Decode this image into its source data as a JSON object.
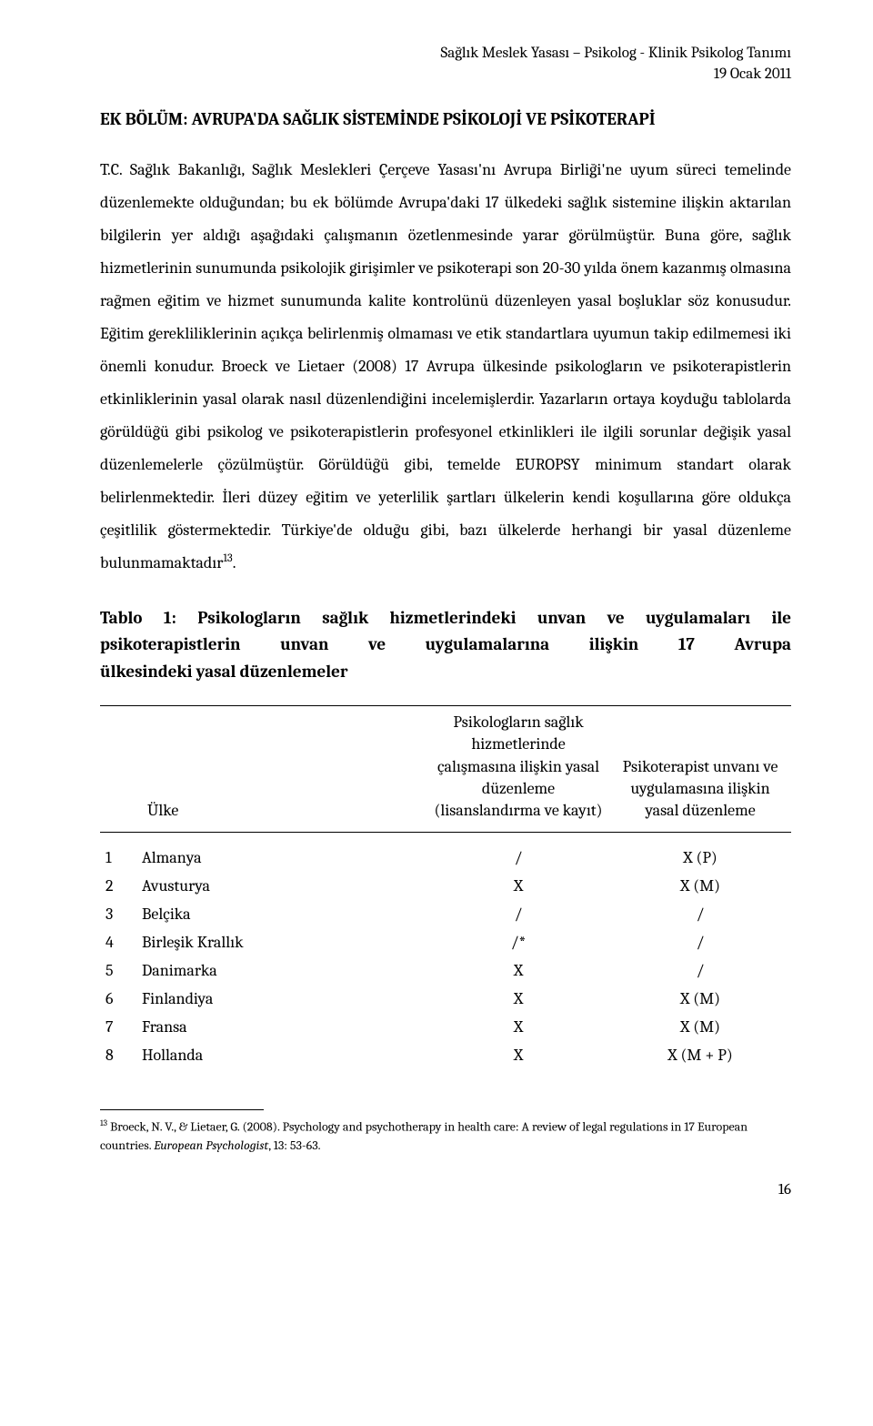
{
  "header": {
    "line1": "Sağlık Meslek Yasası – Psikolog - Klinik Psikolog Tanımı",
    "line2": "19 Ocak 2011"
  },
  "heading": "EK BÖLÜM: AVRUPA'DA SAĞLIK SİSTEMİNDE PSİKOLOJİ VE PSİKOTERAPİ",
  "paragraph": "T.C. Sağlık Bakanlığı, Sağlık Meslekleri Çerçeve Yasası'nı Avrupa Birliği'ne uyum süreci temelinde düzenlemekte olduğundan; bu ek bölümde Avrupa'daki 17 ülkedeki sağlık sistemine ilişkin aktarılan bilgilerin yer aldığı aşağıdaki çalışmanın özetlenmesinde yarar görülmüştür. Buna göre, sağlık hizmetlerinin sunumunda psikolojik girişimler ve psikoterapi son 20-30 yılda önem kazanmış olmasına rağmen eğitim ve hizmet sunumunda kalite kontrolünü düzenleyen yasal boşluklar söz konusudur. Eğitim gerekliliklerinin açıkça belirlenmiş olmaması ve etik standartlara uyumun takip edilmemesi iki önemli konudur. Broeck ve Lietaer (2008) 17 Avrupa ülkesinde psikologların ve psikoterapistlerin etkinliklerinin yasal olarak nasıl düzenlendiğini incelemişlerdir. Yazarların ortaya koyduğu tablolarda görüldüğü gibi psikolog ve psikoterapistlerin profesyonel etkinlikleri ile ilgili sorunlar değişik yasal düzenlemelerle çözülmüştür. Görüldüğü gibi, temelde EUROPSY minimum standart olarak belirlenmektedir. İleri düzey eğitim ve yeterlilik şartları ülkelerin kendi koşullarına göre oldukça çeşitlilik göstermektedir.  Türkiye'de olduğu gibi, bazı ülkelerde herhangi bir yasal düzenleme bulunmamaktadır",
  "footnote_marker": "13",
  "table_caption": {
    "line1": "Tablo 1: Psikologların sağlık hizmetlerindeki unvan ve uygulamaları ile",
    "line2_pre": "psikoterapistlerin unvan ve uygulamalarına ilişkin 17 Avrupa",
    "line3": "ülkesindeki yasal düzenlemeler"
  },
  "table": {
    "col1": "Ülke",
    "col2": "Psikologların sağlık hizmetlerinde çalışmasına ilişkin yasal düzenleme (lisanslandırma ve kayıt)",
    "col3": "Psikoterapist unvanı ve uygulamasına ilişkin yasal düzenleme",
    "rows": [
      {
        "n": "1",
        "country": "Almanya",
        "c2": "/",
        "c3": "X (P)"
      },
      {
        "n": "2",
        "country": "Avusturya",
        "c2": "X",
        "c3": "X (M)"
      },
      {
        "n": "3",
        "country": "Belçika",
        "c2": "/",
        "c3": "/"
      },
      {
        "n": "4",
        "country": "Birleşik Krallık",
        "c2": "/*",
        "c3": "/"
      },
      {
        "n": "5",
        "country": "Danimarka",
        "c2": "X",
        "c3": "/"
      },
      {
        "n": "6",
        "country": "Finlandiya",
        "c2": "X",
        "c3": "X (M)"
      },
      {
        "n": "7",
        "country": "Fransa",
        "c2": "X",
        "c3": "X (M)"
      },
      {
        "n": "8",
        "country": "Hollanda",
        "c2": "X",
        "c3": "X (M + P)"
      }
    ]
  },
  "footnote": {
    "marker": "13",
    "text_pre": " Broeck, N. V., & Lietaer, G. (2008). Psychology and psychotherapy in health care: A review of legal regulations in 17 European countries. ",
    "journal": "European Psychologist",
    "text_post": ", 13: 53-63."
  },
  "page_number": "16"
}
